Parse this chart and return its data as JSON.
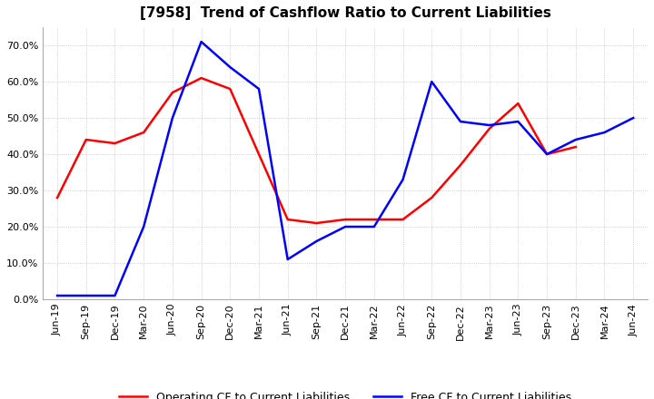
{
  "title": "[7958]  Trend of Cashflow Ratio to Current Liabilities",
  "x_labels": [
    "Jun-19",
    "Sep-19",
    "Dec-19",
    "Mar-20",
    "Jun-20",
    "Sep-20",
    "Dec-20",
    "Mar-21",
    "Jun-21",
    "Sep-21",
    "Dec-21",
    "Mar-22",
    "Jun-22",
    "Sep-22",
    "Dec-22",
    "Mar-23",
    "Jun-23",
    "Sep-23",
    "Dec-23",
    "Mar-24",
    "Jun-24"
  ],
  "operating_cf": [
    0.28,
    0.44,
    0.43,
    0.46,
    0.57,
    0.61,
    0.58,
    0.4,
    0.22,
    0.21,
    0.22,
    0.22,
    0.22,
    0.28,
    0.37,
    0.47,
    0.54,
    0.4,
    0.42,
    null,
    null
  ],
  "free_cf": [
    0.01,
    0.01,
    0.01,
    0.2,
    0.5,
    0.71,
    0.64,
    0.58,
    0.11,
    0.16,
    0.2,
    0.2,
    0.33,
    0.6,
    0.49,
    0.48,
    0.49,
    0.4,
    0.44,
    0.46,
    0.5
  ],
  "ylim": [
    0.0,
    0.75
  ],
  "yticks": [
    0.0,
    0.1,
    0.2,
    0.3,
    0.4,
    0.5,
    0.6,
    0.7
  ],
  "operating_color": "#ff0000",
  "free_color": "#0000ff",
  "grid_color": "#b0b0b0",
  "background_color": "#ffffff",
  "title_fontsize": 11,
  "tick_fontsize": 8,
  "legend_fontsize": 9
}
